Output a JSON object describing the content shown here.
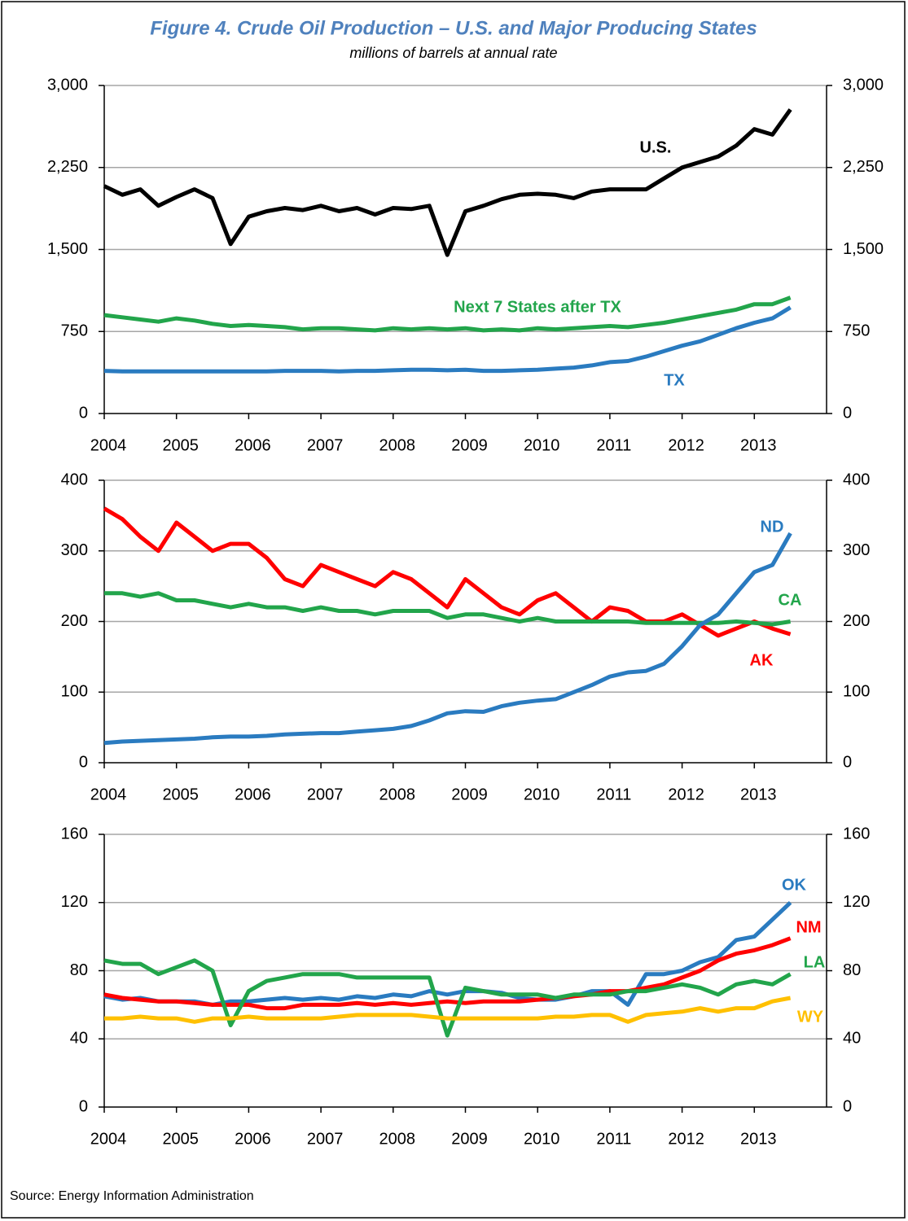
{
  "header": {
    "title": "Figure 4. Crude Oil Production – U.S. and Major Producing States",
    "subtitle": "millions of barrels at annual rate"
  },
  "source": "Source: Energy Information Administration",
  "chart_data": [
    {
      "type": "line",
      "x": [
        2004,
        2004.25,
        2004.5,
        2004.75,
        2005,
        2005.25,
        2005.5,
        2005.75,
        2006,
        2006.25,
        2006.5,
        2006.75,
        2007,
        2007.25,
        2007.5,
        2007.75,
        2008,
        2008.25,
        2008.5,
        2008.75,
        2009,
        2009.25,
        2009.5,
        2009.75,
        2010,
        2010.25,
        2010.5,
        2010.75,
        2011,
        2011.25,
        2011.5,
        2011.75,
        2012,
        2012.25,
        2012.5,
        2012.75,
        2013,
        2013.25,
        2013.5
      ],
      "xlim": [
        2004,
        2014
      ],
      "xticks": [
        2004,
        2005,
        2006,
        2007,
        2008,
        2009,
        2010,
        2011,
        2012,
        2013
      ],
      "ylim": [
        0,
        3000
      ],
      "yticks": [
        0,
        750,
        {
          "value": 1500,
          "label": "1,500"
        },
        {
          "value": 2250,
          "label": "2,250"
        },
        {
          "value": 3000,
          "label": "3,000"
        }
      ],
      "grid": true,
      "series": [
        {
          "name": "U.S.",
          "color": "#000000",
          "values": [
            2080,
            2000,
            2050,
            1900,
            1980,
            2050,
            1970,
            1550,
            1800,
            1850,
            1880,
            1860,
            1900,
            1850,
            1880,
            1820,
            1880,
            1870,
            1900,
            1450,
            1850,
            1900,
            1960,
            2000,
            2010,
            2000,
            1970,
            2030,
            2050,
            2050,
            2050,
            2150,
            2250,
            2300,
            2350,
            2450,
            2600,
            2550,
            2780
          ]
        },
        {
          "name": "Next 7 States after TX",
          "color": "#22a54b",
          "values": [
            900,
            880,
            860,
            840,
            870,
            850,
            820,
            800,
            810,
            800,
            790,
            770,
            780,
            780,
            770,
            760,
            780,
            770,
            780,
            770,
            780,
            760,
            770,
            760,
            780,
            770,
            780,
            790,
            800,
            790,
            810,
            830,
            860,
            890,
            920,
            950,
            1000,
            1000,
            1060
          ]
        },
        {
          "name": "TX",
          "color": "#2a7bc0",
          "values": [
            390,
            385,
            385,
            385,
            385,
            385,
            385,
            385,
            385,
            385,
            390,
            390,
            390,
            385,
            390,
            390,
            395,
            400,
            400,
            395,
            400,
            390,
            390,
            395,
            400,
            410,
            420,
            440,
            470,
            480,
            520,
            570,
            620,
            660,
            720,
            780,
            830,
            870,
            970
          ]
        }
      ]
    },
    {
      "type": "line",
      "x": [
        2004,
        2004.25,
        2004.5,
        2004.75,
        2005,
        2005.25,
        2005.5,
        2005.75,
        2006,
        2006.25,
        2006.5,
        2006.75,
        2007,
        2007.25,
        2007.5,
        2007.75,
        2008,
        2008.25,
        2008.5,
        2008.75,
        2009,
        2009.25,
        2009.5,
        2009.75,
        2010,
        2010.25,
        2010.5,
        2010.75,
        2011,
        2011.25,
        2011.5,
        2011.75,
        2012,
        2012.25,
        2012.5,
        2012.75,
        2013,
        2013.25,
        2013.5
      ],
      "xlim": [
        2004,
        2014
      ],
      "xticks": [
        2004,
        2005,
        2006,
        2007,
        2008,
        2009,
        2010,
        2011,
        2012,
        2013
      ],
      "ylim": [
        0,
        400
      ],
      "yticks": [
        0,
        100,
        200,
        300,
        400
      ],
      "grid": true,
      "series": [
        {
          "name": "AK",
          "color": "#ff0000",
          "values": [
            360,
            345,
            320,
            300,
            340,
            320,
            300,
            310,
            310,
            290,
            260,
            250,
            280,
            270,
            260,
            250,
            270,
            260,
            240,
            220,
            260,
            240,
            220,
            210,
            230,
            240,
            220,
            200,
            220,
            215,
            200,
            200,
            210,
            195,
            180,
            190,
            200,
            190,
            182
          ]
        },
        {
          "name": "CA",
          "color": "#22a54b",
          "values": [
            240,
            240,
            235,
            240,
            230,
            230,
            225,
            220,
            225,
            220,
            220,
            215,
            220,
            215,
            215,
            210,
            215,
            215,
            215,
            205,
            210,
            210,
            205,
            200,
            205,
            200,
            200,
            200,
            200,
            200,
            198,
            198,
            198,
            198,
            198,
            200,
            198,
            196,
            200
          ]
        },
        {
          "name": "ND",
          "color": "#2a7bc0",
          "values": [
            28,
            30,
            31,
            32,
            33,
            34,
            36,
            37,
            37,
            38,
            40,
            41,
            42,
            42,
            44,
            46,
            48,
            52,
            60,
            70,
            73,
            72,
            80,
            85,
            88,
            90,
            100,
            110,
            122,
            128,
            130,
            140,
            165,
            195,
            210,
            240,
            270,
            280,
            325
          ]
        }
      ]
    },
    {
      "type": "line",
      "x": [
        2004,
        2004.25,
        2004.5,
        2004.75,
        2005,
        2005.25,
        2005.5,
        2005.75,
        2006,
        2006.25,
        2006.5,
        2006.75,
        2007,
        2007.25,
        2007.5,
        2007.75,
        2008,
        2008.25,
        2008.5,
        2008.75,
        2009,
        2009.25,
        2009.5,
        2009.75,
        2010,
        2010.25,
        2010.5,
        2010.75,
        2011,
        2011.25,
        2011.5,
        2011.75,
        2012,
        2012.25,
        2012.5,
        2012.75,
        2013,
        2013.25,
        2013.5
      ],
      "xlim": [
        2004,
        2014
      ],
      "xticks": [
        2004,
        2005,
        2006,
        2007,
        2008,
        2009,
        2010,
        2011,
        2012,
        2013
      ],
      "ylim": [
        0,
        160
      ],
      "yticks": [
        0,
        40,
        80,
        120,
        160
      ],
      "grid": true,
      "series": [
        {
          "name": "OK",
          "color": "#2a7bc0",
          "values": [
            65,
            63,
            64,
            62,
            62,
            62,
            60,
            62,
            62,
            63,
            64,
            63,
            64,
            63,
            65,
            64,
            66,
            65,
            68,
            66,
            68,
            68,
            67,
            64,
            63,
            63,
            65,
            68,
            68,
            60,
            78,
            78,
            80,
            85,
            88,
            98,
            100,
            110,
            120
          ]
        },
        {
          "name": "NM",
          "color": "#ff0000",
          "values": [
            66,
            64,
            63,
            62,
            62,
            61,
            60,
            60,
            60,
            58,
            58,
            60,
            60,
            60,
            61,
            60,
            61,
            60,
            61,
            62,
            61,
            62,
            62,
            62,
            63,
            64,
            65,
            66,
            68,
            68,
            70,
            72,
            76,
            80,
            86,
            90,
            92,
            95,
            99
          ]
        },
        {
          "name": "LA",
          "color": "#22a54b",
          "values": [
            86,
            84,
            84,
            78,
            82,
            86,
            80,
            48,
            68,
            74,
            76,
            78,
            78,
            78,
            76,
            76,
            76,
            76,
            76,
            42,
            70,
            68,
            66,
            66,
            66,
            64,
            66,
            66,
            66,
            68,
            68,
            70,
            72,
            70,
            66,
            72,
            74,
            72,
            78
          ]
        },
        {
          "name": "WY",
          "color": "#ffc000",
          "values": [
            52,
            52,
            53,
            52,
            52,
            50,
            52,
            52,
            53,
            52,
            52,
            52,
            52,
            53,
            54,
            54,
            54,
            54,
            53,
            52,
            52,
            52,
            52,
            52,
            52,
            53,
            53,
            54,
            54,
            50,
            54,
            55,
            56,
            58,
            56,
            58,
            58,
            62,
            64
          ]
        }
      ]
    }
  ]
}
